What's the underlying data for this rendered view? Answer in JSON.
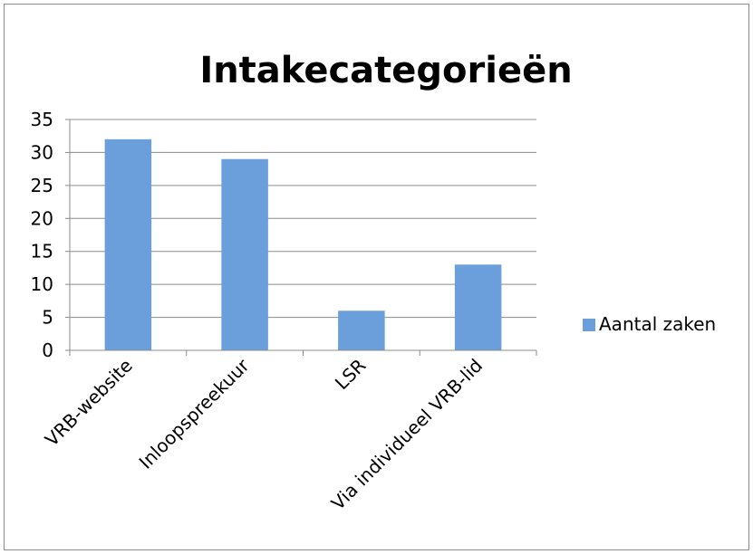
{
  "chart_data": {
    "type": "bar",
    "title": "Intakecategorieën",
    "xlabel": "",
    "ylabel": "",
    "categories": [
      "VRB-website",
      "Inloopspreekuur",
      "LSR",
      "Via individueel VRB-lid"
    ],
    "series": [
      {
        "name": "Aantal zaken",
        "values": [
          32,
          29,
          6,
          13
        ],
        "color": "#6a9fdb"
      }
    ],
    "ylim": [
      0,
      35
    ],
    "yticks": [
      "0",
      "5",
      "10",
      "15",
      "20",
      "25",
      "30",
      "35"
    ],
    "grid": true,
    "legend_position": "right"
  }
}
